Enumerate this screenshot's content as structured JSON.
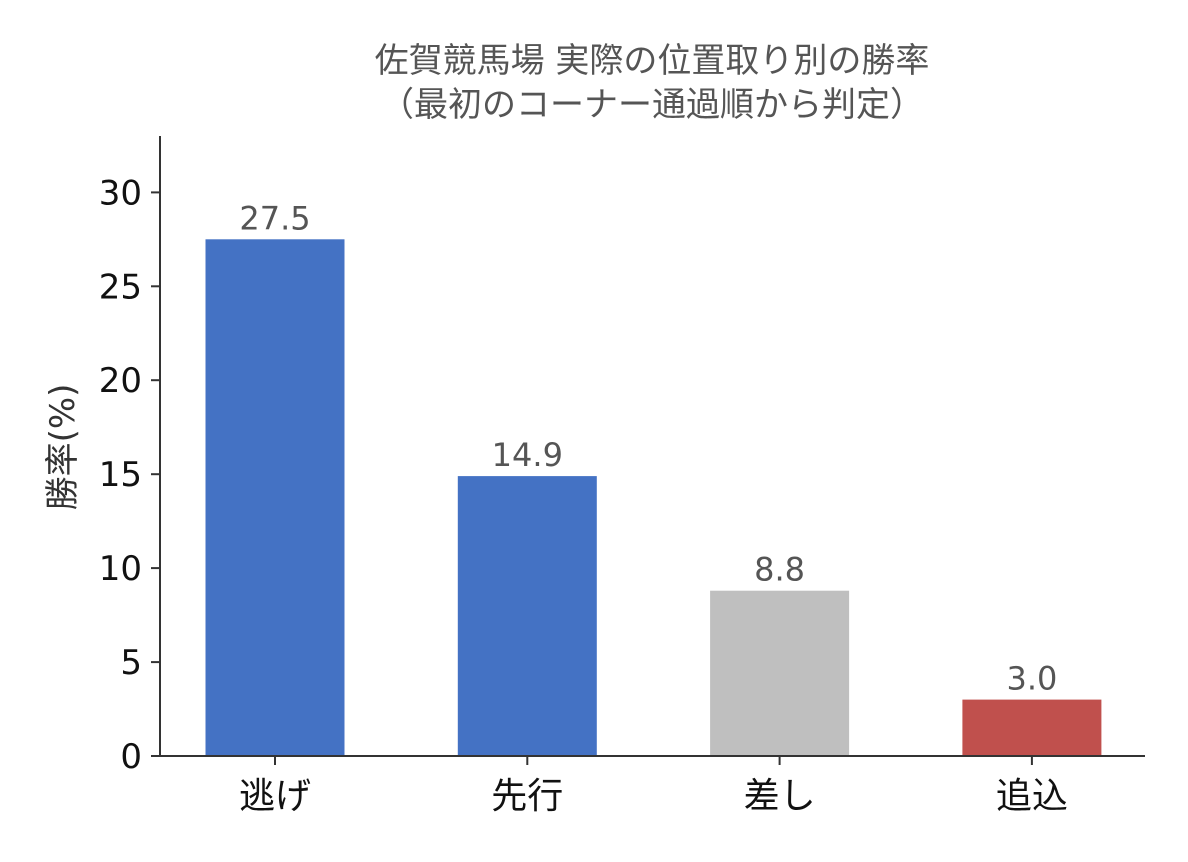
{
  "chart_data": {
    "type": "bar",
    "title_lines": [
      "佐賀競馬場 実際の位置取り別の勝率",
      "（最初のコーナー通過順から判定）"
    ],
    "xlabel": "",
    "ylabel": "勝率(%)",
    "categories": [
      "逃げ",
      "先行",
      "差し",
      "追込"
    ],
    "values": [
      27.5,
      14.9,
      8.8,
      3.0
    ],
    "value_labels": [
      "27.5",
      "14.9",
      "8.8",
      "3.0"
    ],
    "bar_colors": [
      "#4472c4",
      "#4472c4",
      "#bfbfbf",
      "#c0504d"
    ],
    "ylim": [
      0,
      33
    ],
    "yticks": [
      0,
      5,
      10,
      15,
      20,
      25,
      30
    ],
    "ytick_labels": [
      "0",
      "5",
      "10",
      "15",
      "20",
      "25",
      "30"
    ],
    "grid": false,
    "legend": "none"
  }
}
